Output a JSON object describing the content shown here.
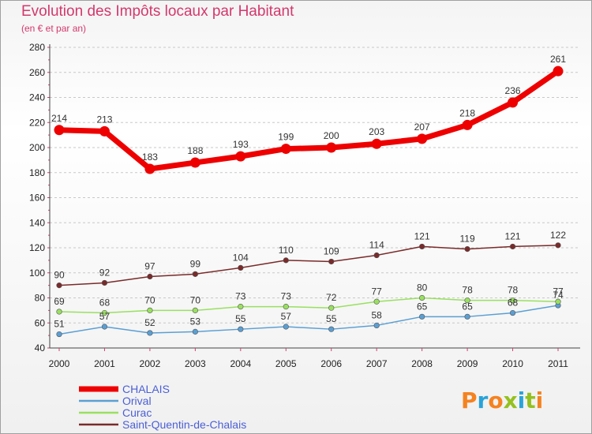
{
  "chart_data": {
    "type": "line",
    "title": "Evolution des Impôts locaux par Habitant",
    "subtitle": "(en € et par an)",
    "x": [
      "2000",
      "2001",
      "2002",
      "2003",
      "2004",
      "2005",
      "2006",
      "2007",
      "2008",
      "2009",
      "2010",
      "2011"
    ],
    "ylim": [
      40,
      280
    ],
    "yticks": [
      "40",
      "60",
      "80",
      "100",
      "120",
      "140",
      "160",
      "180",
      "200",
      "220",
      "240",
      "260",
      "280"
    ],
    "grid": "horizontal dashed",
    "series": [
      {
        "name": "CHALAIS",
        "color": "#ee0000",
        "values": [
          214,
          213,
          183,
          188,
          193,
          199,
          200,
          203,
          207,
          218,
          236,
          261
        ]
      },
      {
        "name": "Orival",
        "color": "#5a9fd4",
        "values": [
          51,
          57,
          52,
          53,
          55,
          57,
          55,
          58,
          65,
          65,
          68,
          74
        ]
      },
      {
        "name": "Curac",
        "color": "#99e060",
        "values": [
          69,
          68,
          70,
          70,
          73,
          73,
          72,
          77,
          80,
          78,
          78,
          77
        ]
      },
      {
        "name": "Saint-Quentin-de-Chalais",
        "color": "#7a2a2a",
        "values": [
          90,
          92,
          97,
          99,
          104,
          110,
          109,
          114,
          121,
          119,
          121,
          122
        ]
      }
    ],
    "legend_position": "bottom-left"
  },
  "branding": {
    "logo_text": "Proxiti",
    "logo_colors": [
      "#f58220",
      "#2aa3d8",
      "#f58220",
      "#94c11f",
      "#2aa3d8",
      "#94c11f",
      "#f58220"
    ]
  }
}
